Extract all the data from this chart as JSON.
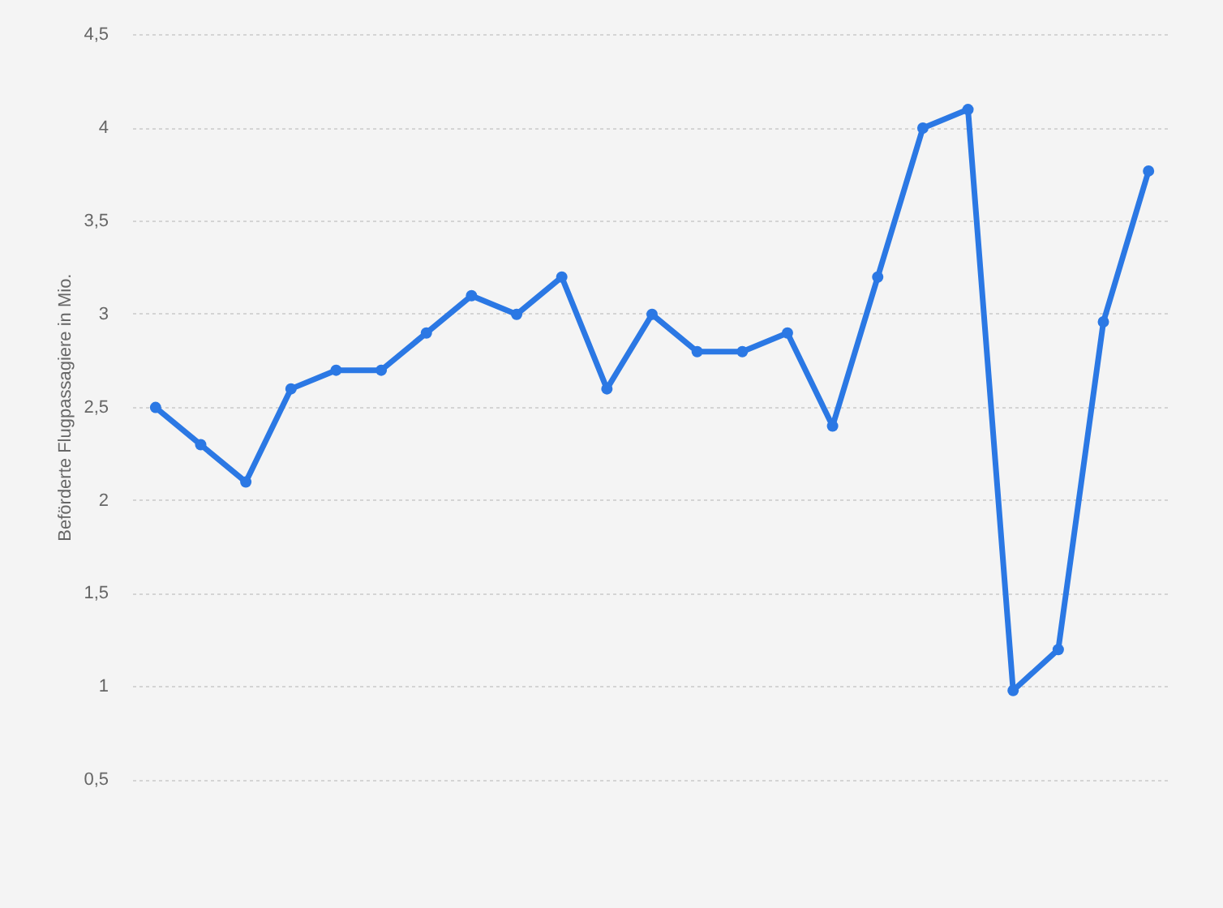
{
  "chart_data": {
    "type": "line",
    "ylabel": "Beförderte Flugpassagiere in Mio.",
    "categories": [
      null,
      null,
      null,
      null,
      null,
      null,
      null,
      null,
      null,
      null,
      null,
      null,
      null,
      null,
      null,
      null,
      null,
      null,
      null,
      null,
      null,
      null,
      null
    ],
    "series": [
      {
        "color": "#2b78e4",
        "values": [
          2.5,
          2.3,
          2.1,
          2.6,
          2.7,
          2.7,
          2.9,
          3.1,
          3.0,
          3.2,
          2.6,
          3.0,
          2.8,
          2.8,
          2.9,
          2.4,
          3.2,
          4.0,
          4.1,
          0.98,
          1.2,
          2.96,
          3.77
        ]
      }
    ],
    "ylim": [
      0.5,
      4.5
    ],
    "yticks": [
      {
        "value": 0.5,
        "label": "0,5"
      },
      1,
      {
        "value": 1.5,
        "label": "1,5"
      },
      2,
      {
        "value": 2.5,
        "label": "2,5"
      },
      3,
      {
        "value": 3.5,
        "label": "3,5"
      },
      4,
      {
        "value": 4.5,
        "label": "4,5"
      }
    ],
    "grid": "y",
    "marker": "circle",
    "line_style": "solid",
    "tick_labels": "y"
  }
}
